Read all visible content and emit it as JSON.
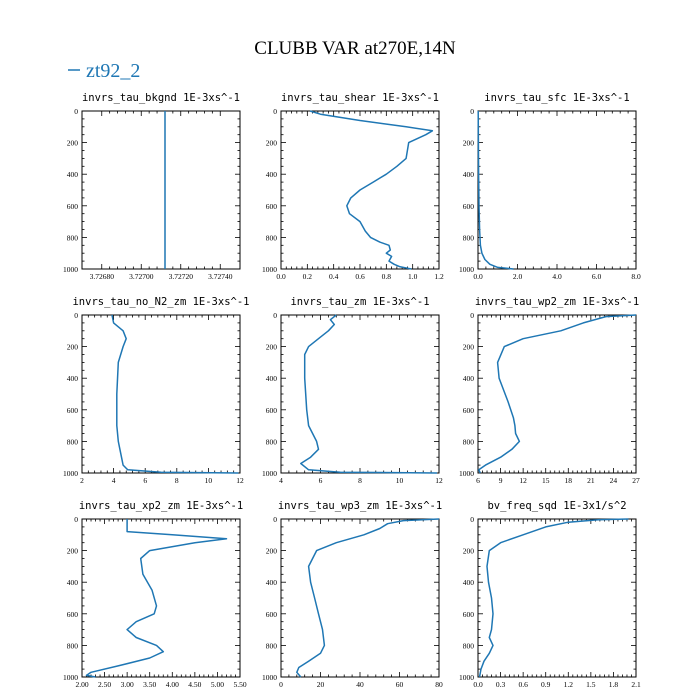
{
  "figure": {
    "title": "CLUBB VAR at270E,14N",
    "legend_label": "zt92_2",
    "series_color": "#1f77b4"
  },
  "chart_data": [
    {
      "type": "line",
      "title": "invrs_tau_bkgnd  1E-3xs^-1",
      "xlim": [
        3.7267,
        3.7275
      ],
      "xticks": [
        3.7268,
        3.727,
        3.7272,
        3.7274
      ],
      "xtick_labels": [
        "3.72680",
        "3.72700",
        "3.72720",
        "3.72740"
      ],
      "ylim": [
        1000,
        0
      ],
      "yticks": [
        0,
        200,
        400,
        600,
        800,
        1000
      ],
      "series": [
        {
          "x": [
            3.72712,
            3.72712
          ],
          "y": [
            0,
            1000
          ]
        }
      ]
    },
    {
      "type": "line",
      "title": "invrs_tau_shear  1E-3xs^-1",
      "xlim": [
        0,
        1.2
      ],
      "xticks": [
        0,
        0.2,
        0.4,
        0.6,
        0.8,
        1.0,
        1.2
      ],
      "xtick_labels": [
        "0.0",
        "0.2",
        "0.4",
        "0.6",
        "0.8",
        "1.0",
        "1.2"
      ],
      "ylim": [
        1000,
        0
      ],
      "yticks": [
        0,
        200,
        400,
        600,
        800,
        1000
      ],
      "series": [
        {
          "x": [
            0.22,
            0.3,
            0.6,
            0.95,
            1.15,
            1.1,
            0.97,
            0.96,
            0.95,
            0.88,
            0.8,
            0.7,
            0.6,
            0.53,
            0.5,
            0.52,
            0.6,
            0.64,
            0.68,
            0.75,
            0.82,
            0.83,
            0.8,
            0.84,
            0.82,
            0.86,
            0.9,
            0.96,
            0.99
          ],
          "y": [
            0,
            20,
            60,
            100,
            125,
            150,
            200,
            250,
            300,
            350,
            400,
            450,
            500,
            550,
            600,
            650,
            700,
            760,
            800,
            830,
            850,
            880,
            900,
            920,
            950,
            970,
            985,
            995,
            1000
          ]
        }
      ]
    },
    {
      "type": "line",
      "title": "invrs_tau_sfc  1E-3xs^-1",
      "xlim": [
        0,
        8
      ],
      "xticks": [
        0,
        2,
        4,
        6,
        8
      ],
      "xtick_labels": [
        "0.0",
        "2.0",
        "4.0",
        "6.0",
        "8.0"
      ],
      "ylim": [
        1000,
        0
      ],
      "yticks": [
        0,
        200,
        400,
        600,
        800,
        1000
      ],
      "series": [
        {
          "x": [
            0.01,
            0.02,
            0.03,
            0.05,
            0.08,
            0.12,
            0.2,
            0.35,
            0.6,
            1.0,
            1.8
          ],
          "y": [
            0,
            200,
            400,
            600,
            750,
            850,
            900,
            940,
            970,
            990,
            1000
          ]
        }
      ]
    },
    {
      "type": "line",
      "title": "invrs_tau_no_N2_zm  1E-3xs^-1",
      "xlim": [
        2,
        12
      ],
      "xticks": [
        2,
        4,
        6,
        8,
        10,
        12
      ],
      "xtick_labels": [
        "2",
        "4",
        "6",
        "8",
        "10",
        "12"
      ],
      "ylim": [
        1000,
        0
      ],
      "yticks": [
        0,
        200,
        400,
        600,
        800,
        1000
      ],
      "series": [
        {
          "x": [
            3.9,
            4.0,
            4.6,
            4.8,
            4.6,
            4.3,
            4.2,
            4.2,
            4.3,
            4.4,
            4.5,
            4.6,
            4.9,
            7.0,
            11.9
          ],
          "y": [
            0,
            50,
            100,
            150,
            200,
            300,
            500,
            700,
            800,
            850,
            900,
            950,
            980,
            995,
            1000
          ]
        }
      ]
    },
    {
      "type": "line",
      "title": "invrs_tau_zm  1E-3xs^-1",
      "xlim": [
        4,
        12
      ],
      "xticks": [
        4,
        6,
        8,
        10,
        12
      ],
      "xtick_labels": [
        "4",
        "6",
        "8",
        "10",
        "12"
      ],
      "ylim": [
        1000,
        0
      ],
      "yticks": [
        0,
        200,
        400,
        600,
        800,
        1000
      ],
      "series": [
        {
          "x": [
            6.8,
            6.5,
            6.7,
            6.4,
            6.0,
            5.4,
            5.2,
            5.2,
            5.3,
            5.4,
            5.6,
            5.8,
            5.9,
            5.5,
            5.0,
            5.4,
            7.0,
            11.9
          ],
          "y": [
            0,
            30,
            60,
            100,
            140,
            200,
            250,
            400,
            600,
            700,
            750,
            800,
            850,
            900,
            940,
            980,
            995,
            1000
          ]
        }
      ]
    },
    {
      "type": "line",
      "title": "invrs_tau_wp2_zm  1E-3xs^-1",
      "xlim": [
        6,
        27
      ],
      "xticks": [
        6,
        9,
        12,
        15,
        18,
        21,
        24,
        27
      ],
      "xtick_labels": [
        "6",
        "9",
        "12",
        "15",
        "18",
        "21",
        "24",
        "27"
      ],
      "ylim": [
        1000,
        0
      ],
      "yticks": [
        0,
        200,
        400,
        600,
        800,
        1000
      ],
      "series": [
        {
          "x": [
            27,
            23,
            20,
            17,
            12,
            9.5,
            8.6,
            8.8,
            10.0,
            10.7,
            10.9,
            11.0,
            11.5,
            10.5,
            9.0,
            7.0,
            6.1,
            6.3
          ],
          "y": [
            0,
            10,
            50,
            100,
            150,
            200,
            300,
            400,
            550,
            650,
            700,
            750,
            800,
            850,
            900,
            950,
            980,
            1000
          ]
        }
      ]
    },
    {
      "type": "line",
      "title": "invrs_tau_xp2_zm  1E-3xs^-1",
      "xlim": [
        2.0,
        5.5
      ],
      "xticks": [
        2.0,
        2.5,
        3.0,
        3.5,
        4.0,
        4.5,
        5.0,
        5.5
      ],
      "xtick_labels": [
        "2.00",
        "2.50",
        "3.00",
        "3.50",
        "4.00",
        "4.50",
        "5.00",
        "5.50"
      ],
      "ylim": [
        1000,
        0
      ],
      "yticks": [
        0,
        200,
        400,
        600,
        800,
        1000
      ],
      "series": [
        {
          "x": [
            3.0,
            3.0,
            4.0,
            5.2,
            4.5,
            3.5,
            3.3,
            3.35,
            3.55,
            3.65,
            3.6,
            3.2,
            3.0,
            3.2,
            3.65,
            3.8,
            3.5,
            2.8,
            2.2,
            2.1,
            2.3
          ],
          "y": [
            0,
            80,
            100,
            125,
            150,
            200,
            250,
            350,
            450,
            550,
            600,
            650,
            700,
            750,
            800,
            840,
            880,
            930,
            970,
            990,
            1000
          ]
        }
      ]
    },
    {
      "type": "line",
      "title": "invrs_tau_wp3_zm  1E-3xs^-1",
      "xlim": [
        0,
        80
      ],
      "xticks": [
        0,
        20,
        40,
        60,
        80
      ],
      "xtick_labels": [
        "0",
        "20",
        "40",
        "60",
        "80"
      ],
      "ylim": [
        1000,
        0
      ],
      "yticks": [
        0,
        200,
        400,
        600,
        800,
        1000
      ],
      "series": [
        {
          "x": [
            80,
            62,
            54,
            50,
            42,
            28,
            18,
            14,
            15,
            17,
            19,
            21,
            22,
            20,
            14,
            9,
            8,
            10
          ],
          "y": [
            0,
            10,
            30,
            60,
            100,
            150,
            200,
            300,
            400,
            500,
            600,
            700,
            800,
            850,
            900,
            940,
            970,
            1000
          ]
        }
      ]
    },
    {
      "type": "line",
      "title": "bv_freq_sqd  1E-3x1/s^2",
      "xlim": [
        0,
        2.1
      ],
      "xticks": [
        0,
        0.3,
        0.6,
        0.9,
        1.2,
        1.5,
        1.8,
        2.1
      ],
      "xtick_labels": [
        "0.0",
        "0.3",
        "0.6",
        "0.9",
        "1.2",
        "1.5",
        "1.8",
        "2.1"
      ],
      "ylim": [
        1000,
        0
      ],
      "yticks": [
        0,
        200,
        400,
        600,
        800,
        1000
      ],
      "series": [
        {
          "x": [
            2.0,
            1.6,
            1.2,
            0.9,
            0.6,
            0.3,
            0.15,
            0.12,
            0.14,
            0.18,
            0.2,
            0.18,
            0.15,
            0.2,
            0.15,
            0.08,
            0.04,
            0.02
          ],
          "y": [
            0,
            5,
            20,
            50,
            100,
            150,
            200,
            300,
            400,
            500,
            600,
            700,
            750,
            800,
            850,
            900,
            950,
            1000
          ]
        }
      ]
    }
  ]
}
